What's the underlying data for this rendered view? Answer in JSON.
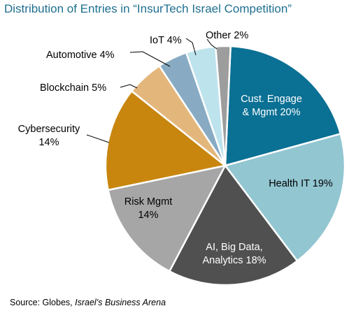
{
  "chart_data": {
    "type": "pie",
    "title": "Distribution of Entries in “InsurTech Israel Competition”",
    "slices": [
      {
        "label": [
          "Cust. Engage",
          "& Mgmt 20%"
        ],
        "name": "Cust. Engage & Mgmt",
        "value": 20,
        "color": "#0a7094",
        "text_color": "#ffffff",
        "label_position": "inside"
      },
      {
        "label": [
          "Health  IT 19%"
        ],
        "name": "Health IT",
        "value": 19,
        "color": "#92c6d1",
        "text_color": "#000000",
        "label_position": "inside"
      },
      {
        "label": [
          "AI, Big Data,",
          "Analytics 18%"
        ],
        "name": "AI, Big Data, Analytics",
        "value": 18,
        "color": "#505050",
        "text_color": "#ffffff",
        "label_position": "inside"
      },
      {
        "label": [
          "Risk Mgmt",
          "14%"
        ],
        "name": "Risk Mgmt",
        "value": 14,
        "color": "#a6a6a6",
        "text_color": "#000000",
        "label_position": "inside"
      },
      {
        "label": [
          "Cybersecurity",
          "14%"
        ],
        "name": "Cybersecurity",
        "value": 14,
        "color": "#c8860f",
        "text_color": "#000000",
        "label_position": "outside-left"
      },
      {
        "label": [
          "Blockchain 5%"
        ],
        "name": "Blockchain",
        "value": 5,
        "color": "#e3b77c",
        "text_color": "#000000",
        "label_position": "outside-left"
      },
      {
        "label": [
          "Automotive  4%"
        ],
        "name": "Automotive",
        "value": 4,
        "color": "#88abc3",
        "text_color": "#000000",
        "label_position": "outside-left"
      },
      {
        "label": [
          "IoT 4%"
        ],
        "name": "IoT",
        "value": 4,
        "color": "#bde3ed",
        "text_color": "#000000",
        "label_position": "outside-top"
      },
      {
        "label": [
          "Other 2%"
        ],
        "name": "Other",
        "value": 2,
        "color": "#9d9d9d",
        "text_color": "#000000",
        "label_position": "outside-top"
      }
    ]
  },
  "footer": {
    "source_prefix": "Source: Globes, ",
    "source_italic": "Israel’s Business Arena"
  }
}
